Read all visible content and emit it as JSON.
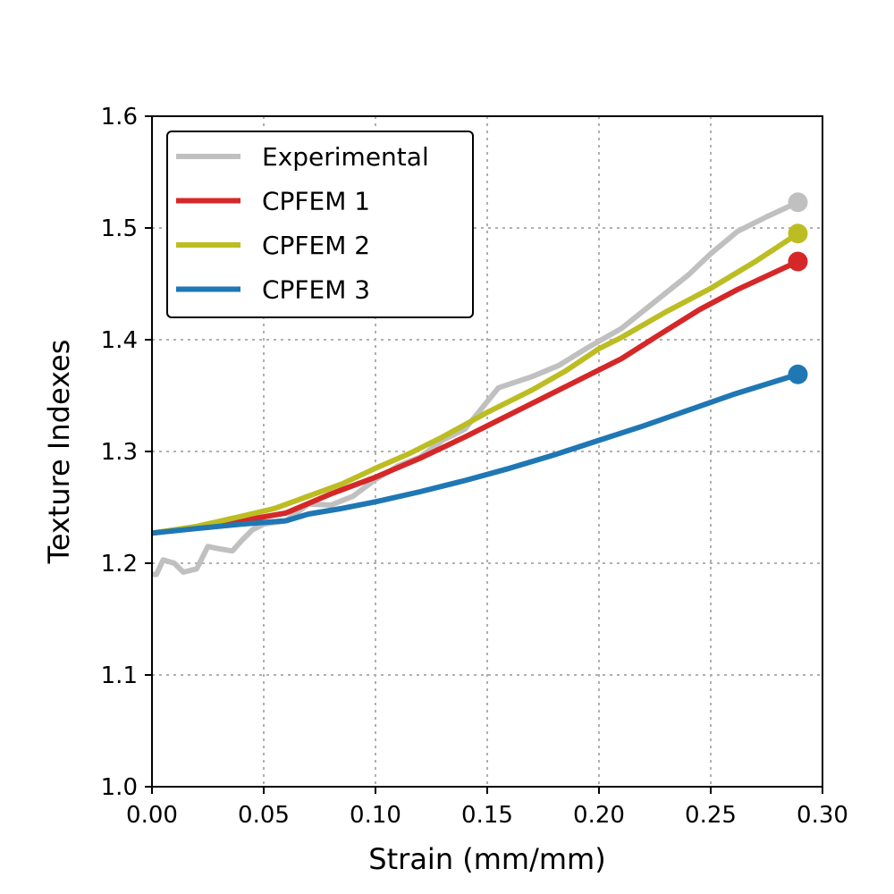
{
  "chart_data": {
    "type": "line",
    "title": "",
    "xlabel": "Strain (mm/mm)",
    "ylabel": "Texture Indexes",
    "xlim": [
      0.0,
      0.3
    ],
    "ylim": [
      1.0,
      1.6
    ],
    "xticks": [
      0.0,
      0.05,
      0.1,
      0.15,
      0.2,
      0.25,
      0.3
    ],
    "xtick_labels": [
      "0.00",
      "0.05",
      "0.10",
      "0.15",
      "0.20",
      "0.25",
      "0.30"
    ],
    "yticks": [
      1.0,
      1.1,
      1.2,
      1.3,
      1.4,
      1.5,
      1.6
    ],
    "ytick_labels": [
      "1.0",
      "1.1",
      "1.2",
      "1.3",
      "1.4",
      "1.5",
      "1.6"
    ],
    "grid": true,
    "legend_position": "top-left",
    "series": [
      {
        "name": "Experimental",
        "color": "#c0c0c0",
        "end_marker": true,
        "x": [
          0.0,
          0.002,
          0.005,
          0.01,
          0.014,
          0.02,
          0.025,
          0.03,
          0.036,
          0.04,
          0.045,
          0.05,
          0.06,
          0.07,
          0.08,
          0.09,
          0.1,
          0.11,
          0.12,
          0.13,
          0.14,
          0.155,
          0.17,
          0.182,
          0.195,
          0.21,
          0.225,
          0.24,
          0.25,
          0.262,
          0.275,
          0.289
        ],
        "y": [
          1.19,
          1.19,
          1.203,
          1.2,
          1.192,
          1.195,
          1.215,
          1.213,
          1.211,
          1.22,
          1.23,
          1.235,
          1.238,
          1.253,
          1.252,
          1.26,
          1.275,
          1.287,
          1.295,
          1.31,
          1.32,
          1.357,
          1.367,
          1.377,
          1.393,
          1.41,
          1.434,
          1.458,
          1.477,
          1.497,
          1.51,
          1.523
        ]
      },
      {
        "name": "CPFEM 1",
        "color": "#d62728",
        "end_marker": true,
        "x": [
          0.0,
          0.02,
          0.04,
          0.06,
          0.08,
          0.1,
          0.12,
          0.14,
          0.16,
          0.18,
          0.2,
          0.21,
          0.225,
          0.245,
          0.262,
          0.289
        ],
        "y": [
          1.227,
          1.232,
          1.238,
          1.245,
          1.262,
          1.277,
          1.294,
          1.313,
          1.333,
          1.353,
          1.373,
          1.383,
          1.402,
          1.427,
          1.445,
          1.47
        ]
      },
      {
        "name": "CPFEM 2",
        "color": "#bcbd22",
        "end_marker": true,
        "x": [
          0.0,
          0.02,
          0.04,
          0.055,
          0.07,
          0.085,
          0.1,
          0.115,
          0.13,
          0.15,
          0.17,
          0.185,
          0.2,
          0.21,
          0.23,
          0.25,
          0.27,
          0.289
        ],
        "y": [
          1.227,
          1.233,
          1.242,
          1.249,
          1.26,
          1.271,
          1.285,
          1.298,
          1.313,
          1.335,
          1.355,
          1.372,
          1.392,
          1.402,
          1.425,
          1.446,
          1.47,
          1.495
        ]
      },
      {
        "name": "CPFEM 3",
        "color": "#1f77b4",
        "end_marker": true,
        "x": [
          0.0,
          0.02,
          0.04,
          0.06,
          0.07,
          0.085,
          0.1,
          0.12,
          0.14,
          0.16,
          0.18,
          0.2,
          0.22,
          0.24,
          0.26,
          0.289
        ],
        "y": [
          1.227,
          1.231,
          1.235,
          1.238,
          1.244,
          1.249,
          1.255,
          1.264,
          1.274,
          1.285,
          1.297,
          1.31,
          1.323,
          1.337,
          1.351,
          1.369
        ]
      }
    ]
  }
}
